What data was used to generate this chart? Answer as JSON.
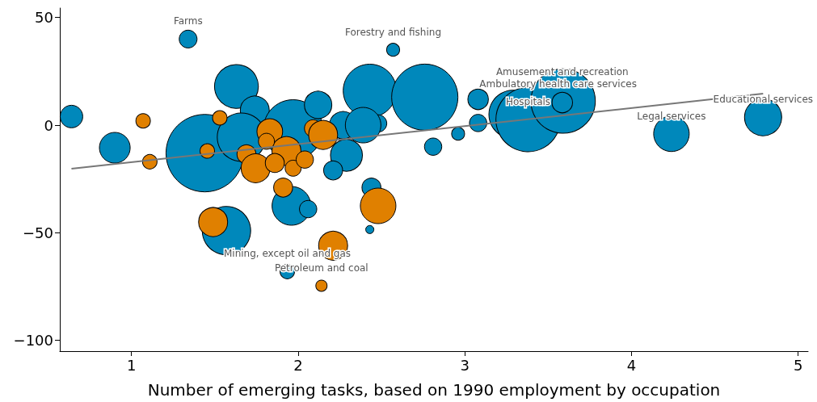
{
  "chart_data": {
    "type": "bubble",
    "xlabel": "Number of emerging tasks, based on 1990 employment by occupation",
    "xlim": [
      0.57,
      5.06
    ],
    "xticks": [
      1,
      2,
      3,
      4,
      5
    ],
    "ylim": [
      -105,
      54.4
    ],
    "yticks": [
      -100,
      -50,
      0,
      50
    ],
    "grid": false,
    "series": [
      {
        "color": "#0088bb",
        "x": [
          0.64,
          0.9,
          1.34,
          1.44,
          1.63,
          1.74,
          1.97,
          2.12,
          2.27,
          2.43,
          2.76,
          2.48,
          2.39,
          2.29,
          2.21,
          2.57,
          2.81,
          2.96,
          3.08,
          3.08,
          3.29,
          3.38,
          3.59,
          3.585,
          4.24,
          4.79,
          1.57,
          1.96,
          2.06,
          2.44,
          2.43,
          1.935,
          1.66
        ],
        "values": [
          4,
          -10.5,
          40,
          -13,
          18,
          6.8,
          -2,
          9.4,
          0,
          16,
          13,
          0.8,
          0,
          -14,
          -21,
          35,
          -10,
          -4,
          12,
          1,
          5,
          2.6,
          11.2,
          10.5,
          -4,
          3.7,
          -49,
          -37.5,
          -39,
          -29,
          -48.5,
          -68,
          -5.6
        ],
        "sizes": [
          0.085,
          0.157,
          0.053,
          1,
          0.32,
          0.14,
          0.59,
          0.125,
          0.125,
          0.47,
          0.73,
          0.05,
          0.21,
          0.17,
          0.06,
          0.028,
          0.05,
          0.028,
          0.07,
          0.05,
          0.39,
          0.69,
          0.69,
          0.07,
          0.21,
          0.23,
          0.39,
          0.25,
          0.05,
          0.06,
          0.011,
          0.035,
          0.39
        ]
      },
      {
        "color": "#e08000",
        "x": [
          1.07,
          1.11,
          1.53,
          1.455,
          1.83,
          1.69,
          1.745,
          1.93,
          1.86,
          1.97,
          2.04,
          2.09,
          2.15,
          1.81,
          1.91,
          1.49,
          2.48,
          2.21,
          2.14
        ],
        "values": [
          2,
          -17,
          3.4,
          -12,
          -3,
          -13.5,
          -20,
          -12,
          -17.6,
          -20,
          -16,
          -1.5,
          -4.5,
          -7.5,
          -29,
          -45,
          -37.5,
          -56,
          -74.6
        ],
        "sizes": [
          0.035,
          0.035,
          0.035,
          0.035,
          0.11,
          0.06,
          0.14,
          0.14,
          0.06,
          0.043,
          0.05,
          0.05,
          0.14,
          0.043,
          0.06,
          0.14,
          0.21,
          0.14,
          0.021
        ]
      },
      {
        "type": "line",
        "color": "#777777",
        "x": [
          0.64,
          4.79
        ],
        "values": [
          -20.2,
          14.6
        ]
      }
    ],
    "annotations": [
      {
        "text": "Farms",
        "x": 1.34,
        "y": 40
      },
      {
        "text": "Forestry and fishing",
        "x": 2.57,
        "y": 35
      },
      {
        "text": "Ambulatory health care services",
        "x": 3.56,
        "y": 11
      },
      {
        "text": "Amusement and recreation",
        "x": 3.585,
        "y": 10.5
      },
      {
        "text": "Hospitals",
        "x": 3.38,
        "y": 2.6
      },
      {
        "text": "Legal services",
        "x": 4.24,
        "y": -4
      },
      {
        "text": "Educational services",
        "x": 4.79,
        "y": 3.7
      },
      {
        "text": "Mining, except oil and gas",
        "x": 1.935,
        "y": -68
      },
      {
        "text": "Petroleum and coal",
        "x": 2.14,
        "y": -74.6
      }
    ]
  }
}
